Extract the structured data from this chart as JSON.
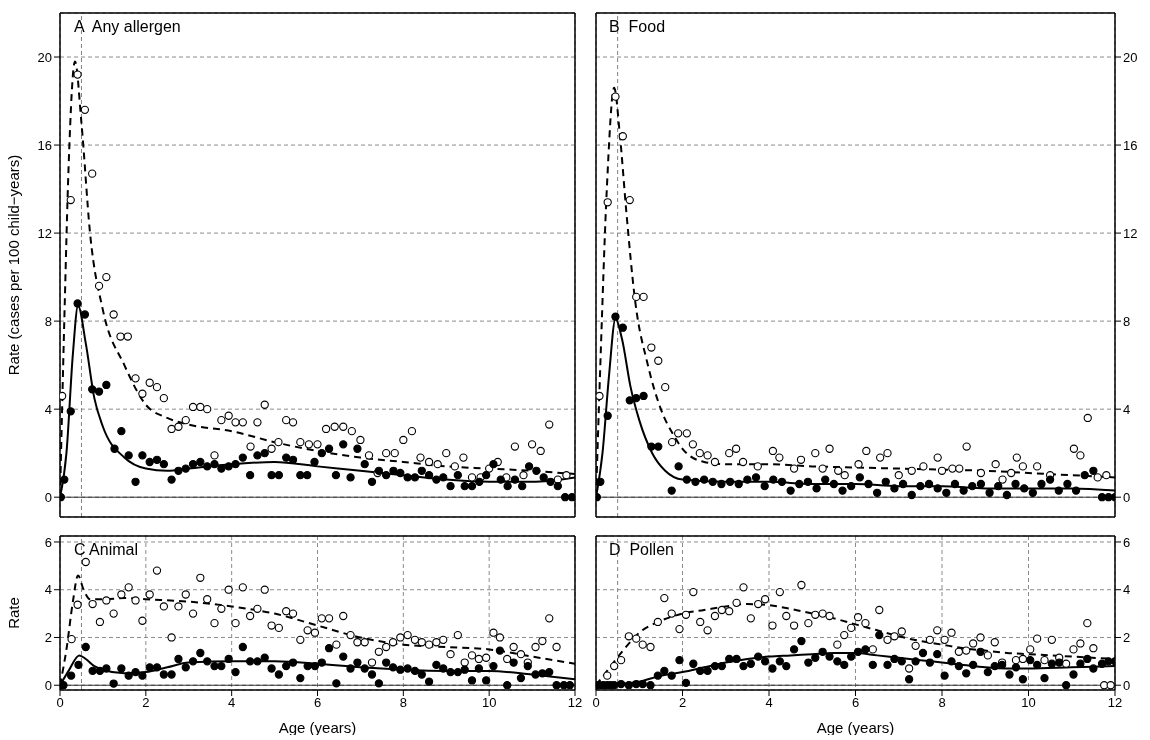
{
  "chart_data": [
    {
      "type": "scatter",
      "title": "A  Any allergen",
      "ylabel": "Rate (cases per 100 child−years)",
      "xlim": [
        0,
        12
      ],
      "xticks": [
        0,
        2,
        4,
        6,
        8,
        10,
        12
      ],
      "ylim": [
        -0.9,
        22
      ],
      "yticks": [
        0,
        4,
        8,
        12,
        16,
        20
      ],
      "tick_labels": "y",
      "grid": true,
      "ref_lines": [
        {
          "axis": "x",
          "value": 0.5,
          "color": "#808080",
          "line_style": "dashed"
        },
        {
          "axis": "y",
          "value": 0,
          "color": "#000000",
          "line_style": "solid"
        }
      ],
      "series": [
        {
          "type": "scatter",
          "marker": "circle",
          "color": "#ffffff",
          "x": [
            0.05,
            0.25,
            0.41,
            0.58,
            0.75,
            0.91,
            1.08,
            1.25,
            1.41,
            1.58,
            1.76,
            1.92,
            2.09,
            2.26,
            2.42,
            2.6,
            2.76,
            2.93,
            3.1,
            3.27,
            3.43,
            3.6,
            3.76,
            3.93,
            4.09,
            4.26,
            4.44,
            4.6,
            4.77,
            4.93,
            5.09,
            5.27,
            5.43,
            5.6,
            5.8,
            6.0,
            6.2,
            6.4,
            6.6,
            6.8,
            7.0,
            7.2,
            7.4,
            7.6,
            7.8,
            8.0,
            8.2,
            8.4,
            8.6,
            8.8,
            9.0,
            9.2,
            9.4,
            9.6,
            9.8,
            10.0,
            10.2,
            10.4,
            10.6,
            10.8,
            11.0,
            11.2,
            11.4,
            11.6,
            11.8
          ],
          "values": [
            4.6,
            13.5,
            19.2,
            17.6,
            14.7,
            9.6,
            10.0,
            8.3,
            7.3,
            7.3,
            5.4,
            4.7,
            5.2,
            5.0,
            4.5,
            3.1,
            3.2,
            3.5,
            4.1,
            4.1,
            4.0,
            1.9,
            3.5,
            3.7,
            3.4,
            3.4,
            2.3,
            3.4,
            4.2,
            2.2,
            2.5,
            3.5,
            3.4,
            2.5,
            2.4,
            2.4,
            3.1,
            3.2,
            3.2,
            3.0,
            2.6,
            1.9,
            1.1,
            2.0,
            2.0,
            2.6,
            3.0,
            1.8,
            1.6,
            1.5,
            2.0,
            1.4,
            1.8,
            0.9,
            0.9,
            1.3,
            1.6,
            0.9,
            2.3,
            1.0,
            2.4,
            2.1,
            3.3,
            0.8,
            1.0
          ]
        },
        {
          "type": "scatter",
          "marker": "circle",
          "color": "#000000",
          "x": [
            0.02,
            0.1,
            0.25,
            0.41,
            0.58,
            0.75,
            0.91,
            1.08,
            1.27,
            1.43,
            1.6,
            1.76,
            1.92,
            2.09,
            2.26,
            2.42,
            2.6,
            2.76,
            2.93,
            3.1,
            3.27,
            3.43,
            3.6,
            3.76,
            3.93,
            4.09,
            4.26,
            4.43,
            4.6,
            4.77,
            4.93,
            5.1,
            5.27,
            5.43,
            5.6,
            5.76,
            5.93,
            6.1,
            6.27,
            6.43,
            6.6,
            6.77,
            6.93,
            7.1,
            7.27,
            7.43,
            7.6,
            7.77,
            7.93,
            8.1,
            8.27,
            8.43,
            8.6,
            8.77,
            8.93,
            9.1,
            9.27,
            9.43,
            9.6,
            9.77,
            9.93,
            10.1,
            10.27,
            10.43,
            10.6,
            10.77,
            10.93,
            11.1,
            11.27,
            11.43,
            11.6,
            11.77,
            11.93
          ],
          "values": [
            0,
            0.8,
            3.9,
            8.8,
            8.3,
            4.9,
            4.8,
            5.1,
            2.2,
            3.0,
            1.9,
            0.7,
            1.9,
            1.6,
            1.7,
            1.5,
            0.8,
            1.2,
            1.3,
            1.5,
            1.6,
            1.4,
            1.5,
            1.3,
            1.4,
            1.5,
            1.8,
            1.0,
            1.9,
            2.0,
            1.0,
            1.0,
            1.8,
            1.7,
            1.0,
            1.0,
            1.6,
            2.0,
            2.2,
            1.0,
            2.4,
            0.9,
            2.2,
            1.5,
            0.7,
            1.2,
            1.0,
            1.2,
            1.1,
            0.9,
            0.9,
            1.2,
            1.0,
            0.8,
            0.9,
            0.5,
            1.0,
            0.5,
            0.5,
            0.7,
            1.0,
            1.5,
            0.8,
            0.5,
            0.8,
            0.5,
            1.4,
            1.2,
            0.9,
            0.7,
            0.5,
            0,
            0
          ]
        },
        {
          "type": "line",
          "marker": "none",
          "line_style": "dashed",
          "color": "#000000",
          "x": [
            0,
            0.1,
            0.2,
            0.35,
            0.5,
            0.7,
            1.0,
            1.5,
            2.0,
            2.5,
            3,
            4,
            5,
            6,
            7,
            8,
            9,
            10,
            11,
            12
          ],
          "values": [
            0,
            8,
            15,
            19.8,
            17,
            12,
            8.5,
            6,
            4.2,
            3.6,
            3.3,
            3.0,
            2.5,
            2.1,
            1.8,
            1.6,
            1.4,
            1.3,
            1.2,
            1.05
          ]
        },
        {
          "type": "line",
          "marker": "none",
          "line_style": "solid",
          "color": "#000000",
          "x": [
            0,
            0.15,
            0.3,
            0.42,
            0.6,
            0.8,
            1.0,
            1.5,
            2.0,
            2.5,
            3,
            4,
            5,
            6,
            7,
            8,
            9,
            10,
            11,
            12
          ],
          "values": [
            0,
            2,
            6.5,
            8.7,
            7,
            4.5,
            3.2,
            1.8,
            1.3,
            1.2,
            1.3,
            1.5,
            1.6,
            1.4,
            1.2,
            1.0,
            0.8,
            0.7,
            0.7,
            0.9
          ]
        }
      ]
    },
    {
      "type": "scatter",
      "title": "B  Food",
      "xlim": [
        0,
        12
      ],
      "xticks": [
        0,
        2,
        4,
        6,
        8,
        10,
        12
      ],
      "y2lim": [
        -0.9,
        22
      ],
      "y2ticks": [
        0,
        4,
        8,
        12,
        16,
        20
      ],
      "tick_labels": "y",
      "grid": true,
      "ref_lines": [
        {
          "axis": "x",
          "value": 0.5,
          "color": "#808080",
          "line_style": "dashed"
        },
        {
          "axis": "y2",
          "value": 0,
          "color": "#000000",
          "line_style": "solid"
        }
      ],
      "series": [
        {
          "type": "scatter",
          "axis": "y2",
          "marker": "circle",
          "color": "#ffffff",
          "x": [
            0.08,
            0.27,
            0.45,
            0.62,
            0.78,
            0.93,
            1.1,
            1.28,
            1.44,
            1.6,
            1.76,
            1.9,
            2.1,
            2.24,
            2.4,
            2.58,
            2.75,
            3.08,
            3.24,
            3.4,
            3.74,
            4.09,
            4.24,
            4.58,
            4.74,
            5.07,
            5.24,
            5.4,
            5.6,
            5.75,
            6.07,
            6.25,
            6.57,
            6.74,
            7.0,
            7.3,
            7.57,
            7.9,
            8.0,
            8.24,
            8.4,
            8.57,
            8.9,
            9.24,
            9.4,
            9.6,
            9.73,
            9.87,
            10.2,
            10.5,
            11.05,
            11.2,
            11.37,
            11.6,
            11.8
          ],
          "values": [
            4.6,
            13.4,
            18.2,
            16.4,
            13.5,
            9.1,
            9.1,
            6.8,
            6.2,
            5.0,
            2.5,
            2.9,
            2.9,
            2.4,
            2.0,
            1.9,
            1.6,
            2.0,
            2.2,
            1.6,
            1.4,
            2.1,
            1.8,
            1.3,
            1.7,
            2.0,
            1.3,
            2.2,
            1.2,
            1.0,
            1.5,
            2.1,
            1.8,
            2.0,
            1.0,
            1.2,
            1.4,
            1.8,
            1.2,
            1.3,
            1.3,
            2.3,
            1.1,
            1.5,
            0.8,
            1.1,
            1.8,
            1.4,
            1.4,
            1.0,
            2.2,
            1.9,
            3.6,
            0.9,
            1.0
          ]
        },
        {
          "type": "scatter",
          "axis": "y2",
          "marker": "circle",
          "color": "#000000",
          "x": [
            0.02,
            0.1,
            0.27,
            0.45,
            0.62,
            0.78,
            0.93,
            1.1,
            1.28,
            1.44,
            1.75,
            1.91,
            2.1,
            2.3,
            2.5,
            2.7,
            2.9,
            3.1,
            3.3,
            3.5,
            3.7,
            3.9,
            4.1,
            4.3,
            4.5,
            4.7,
            4.9,
            5.1,
            5.3,
            5.5,
            5.7,
            5.9,
            6.1,
            6.3,
            6.5,
            6.7,
            6.9,
            7.1,
            7.3,
            7.5,
            7.7,
            7.9,
            8.1,
            8.3,
            8.5,
            8.7,
            8.9,
            9.1,
            9.3,
            9.5,
            9.7,
            9.9,
            10.1,
            10.3,
            10.5,
            10.7,
            10.9,
            11.1,
            11.3,
            11.5,
            11.7,
            11.85,
            12
          ],
          "values": [
            0,
            0.7,
            3.7,
            8.2,
            7.7,
            4.4,
            4.5,
            4.6,
            2.3,
            2.3,
            0.3,
            1.4,
            0.8,
            0.7,
            0.8,
            0.7,
            0.6,
            0.7,
            0.6,
            0.8,
            0.9,
            0.5,
            0.8,
            0.7,
            0.3,
            0.6,
            0.7,
            0.4,
            0.8,
            0.6,
            0.3,
            0.5,
            0.9,
            0.6,
            0.2,
            0.7,
            0.4,
            0.6,
            0.1,
            0.5,
            0.6,
            0.4,
            0.2,
            0.6,
            0.3,
            0.5,
            0.6,
            0.2,
            0.5,
            0.1,
            0.6,
            0.4,
            0.2,
            0.6,
            0.8,
            0.3,
            0.6,
            0.3,
            1.0,
            1.2,
            0,
            0,
            0
          ]
        },
        {
          "type": "line",
          "axis": "y2",
          "marker": "none",
          "line_style": "dashed",
          "color": "#000000",
          "x": [
            0,
            0.1,
            0.25,
            0.42,
            0.55,
            0.7,
            0.9,
            1.2,
            1.5,
            1.8,
            2.0,
            2.5,
            3,
            4,
            5,
            6,
            7,
            8,
            9,
            10,
            11,
            12
          ],
          "values": [
            0,
            6,
            14,
            18.6,
            16.5,
            13,
            9,
            6,
            4,
            2.8,
            2.2,
            1.6,
            1.5,
            1.5,
            1.4,
            1.35,
            1.3,
            1.25,
            1.2,
            1.1,
            1.0,
            0.9
          ]
        },
        {
          "type": "line",
          "axis": "y2",
          "marker": "none",
          "line_style": "solid",
          "color": "#000000",
          "x": [
            0,
            0.15,
            0.3,
            0.45,
            0.6,
            0.8,
            1.0,
            1.3,
            1.6,
            2.0,
            3,
            4,
            5,
            6,
            7,
            8,
            9,
            10,
            11,
            12
          ],
          "values": [
            0,
            2,
            5.5,
            8.1,
            7.2,
            5,
            3.5,
            2.0,
            1.2,
            0.8,
            0.7,
            0.7,
            0.6,
            0.6,
            0.5,
            0.5,
            0.4,
            0.4,
            0.4,
            0.3
          ]
        }
      ]
    },
    {
      "type": "scatter",
      "title": "C Animal",
      "ylabel": "Rate",
      "xlabel": "Age (years)",
      "xlim": [
        0,
        12
      ],
      "xticks": [
        0,
        2,
        4,
        6,
        8,
        10,
        12
      ],
      "ylim": [
        -0.2,
        6.25
      ],
      "yticks": [
        0,
        2,
        4,
        6
      ],
      "grid": true,
      "ref_lines": [
        {
          "axis": "x",
          "value": 0.5,
          "color": "#808080",
          "line_style": "dashed"
        },
        {
          "axis": "y",
          "value": 0,
          "color": "#000000",
          "line_style": "solid"
        }
      ],
      "series": [
        {
          "type": "scatter",
          "marker": "circle",
          "color": "#ffffff",
          "x": [
            0.27,
            0.41,
            0.6,
            0.76,
            0.93,
            1.08,
            1.25,
            1.43,
            1.6,
            1.76,
            1.92,
            2.09,
            2.26,
            2.42,
            2.6,
            2.76,
            2.93,
            3.1,
            3.27,
            3.43,
            3.6,
            3.76,
            3.93,
            4.09,
            4.26,
            4.43,
            4.6,
            4.77,
            4.93,
            5.1,
            5.27,
            5.43,
            5.6,
            5.77,
            5.94,
            6.1,
            6.27,
            6.44,
            6.6,
            6.77,
            6.93,
            7.1,
            7.27,
            7.43,
            7.6,
            7.76,
            7.93,
            8.1,
            8.27,
            8.43,
            8.6,
            8.77,
            8.93,
            9.1,
            9.27,
            9.43,
            9.6,
            9.76,
            9.93,
            10.1,
            10.25,
            10.42,
            10.57,
            10.74,
            10.9,
            11.08,
            11.24,
            11.4,
            11.57
          ],
          "values": [
            1.93,
            3.37,
            5.16,
            3.4,
            2.65,
            3.55,
            3.0,
            3.8,
            4.1,
            3.55,
            2.7,
            3.8,
            4.8,
            3.3,
            2.0,
            3.3,
            3.8,
            3.0,
            4.5,
            3.6,
            2.6,
            3.2,
            4.0,
            2.6,
            4.1,
            2.9,
            3.2,
            4.0,
            2.5,
            2.4,
            3.1,
            3.0,
            1.9,
            2.3,
            2.2,
            2.8,
            2.8,
            1.7,
            2.9,
            2.1,
            1.8,
            1.8,
            0.95,
            1.4,
            1.6,
            1.8,
            2.0,
            2.1,
            1.9,
            1.8,
            1.7,
            1.8,
            1.9,
            1.3,
            2.1,
            0.95,
            1.25,
            1.1,
            1.15,
            2.2,
            2.0,
            1.1,
            1.6,
            1.3,
            0.95,
            1.6,
            1.85,
            2.8,
            1.6
          ]
        },
        {
          "type": "scatter",
          "marker": "circle",
          "color": "#000000",
          "x": [
            0.02,
            0.08,
            0.26,
            0.43,
            0.6,
            0.76,
            0.93,
            1.08,
            1.25,
            1.43,
            1.6,
            1.76,
            1.92,
            2.09,
            2.26,
            2.42,
            2.6,
            2.76,
            2.93,
            3.1,
            3.27,
            3.43,
            3.6,
            3.76,
            3.93,
            4.09,
            4.26,
            4.43,
            4.6,
            4.77,
            4.93,
            5.1,
            5.27,
            5.43,
            5.6,
            5.77,
            5.94,
            6.1,
            6.27,
            6.44,
            6.6,
            6.77,
            6.93,
            7.1,
            7.27,
            7.43,
            7.6,
            7.76,
            7.93,
            8.1,
            8.27,
            8.43,
            8.6,
            8.77,
            8.93,
            9.1,
            9.27,
            9.43,
            9.6,
            9.76,
            9.93,
            10.1,
            10.25,
            10.42,
            10.57,
            10.74,
            10.9,
            11.08,
            11.24,
            11.4,
            11.57,
            11.74,
            11.88
          ],
          "values": [
            0,
            0,
            0.4,
            0.85,
            1.6,
            0.6,
            0.6,
            0.7,
            0.07,
            0.7,
            0.4,
            0.55,
            0.4,
            0.75,
            0.75,
            0.45,
            0.45,
            1.1,
            0.75,
            1.0,
            1.35,
            1.0,
            0.8,
            0.8,
            1.1,
            0.55,
            1.6,
            1.0,
            1.0,
            1.15,
            0.7,
            0.45,
            0.8,
            0.95,
            0.3,
            0.8,
            0.8,
            0.95,
            1.55,
            0.08,
            1.2,
            0.7,
            0.95,
            0.7,
            0.45,
            0.08,
            0.95,
            0.75,
            0.65,
            0.7,
            0.6,
            0.45,
            0.15,
            0.85,
            0.7,
            0.55,
            0.55,
            0.65,
            0.2,
            0.7,
            0.2,
            0.8,
            1.45,
            0,
            0.95,
            0.3,
            0.8,
            0.45,
            0.5,
            0.55,
            0,
            0,
            0
          ]
        },
        {
          "type": "line",
          "marker": "none",
          "line_style": "dashed",
          "color": "#000000",
          "x": [
            0,
            0.15,
            0.3,
            0.42,
            0.55,
            0.7,
            1,
            1.5,
            2,
            3,
            4,
            5,
            6,
            7,
            8,
            9,
            10,
            11,
            12
          ],
          "values": [
            0,
            1.5,
            3.5,
            4.6,
            4.0,
            3.6,
            3.6,
            3.65,
            3.6,
            3.5,
            3.3,
            3.0,
            2.5,
            2.0,
            1.7,
            1.6,
            1.5,
            1.2,
            0.9
          ]
        },
        {
          "type": "line",
          "marker": "none",
          "line_style": "solid",
          "color": "#000000",
          "x": [
            0,
            0.2,
            0.45,
            0.6,
            0.8,
            1.0,
            1.5,
            2,
            2.5,
            3,
            4,
            5,
            6,
            7,
            8,
            9,
            10,
            11,
            12
          ],
          "values": [
            0,
            0.6,
            1.25,
            1.1,
            0.8,
            0.65,
            0.5,
            0.55,
            0.75,
            0.95,
            1.0,
            1.0,
            0.9,
            0.75,
            0.65,
            0.6,
            0.6,
            0.45,
            0.25
          ]
        }
      ]
    },
    {
      "type": "scatter",
      "title": "D  Pollen",
      "xlabel": "Age (years)",
      "xlim": [
        0,
        12
      ],
      "xticks": [
        0,
        2,
        4,
        6,
        8,
        10,
        12
      ],
      "y2lim": [
        -0.2,
        6.25
      ],
      "y2ticks": [
        0,
        2,
        4,
        6
      ],
      "grid": true,
      "ref_lines": [
        {
          "axis": "x",
          "value": 0.5,
          "color": "#808080",
          "line_style": "dashed"
        },
        {
          "axis": "y2",
          "value": 0,
          "color": "#000000",
          "line_style": "solid"
        }
      ],
      "series": [
        {
          "type": "scatter",
          "axis": "y2",
          "marker": "circle",
          "color": "#ffffff",
          "x": [
            0.26,
            0.42,
            0.58,
            0.76,
            0.93,
            1.08,
            1.26,
            1.43,
            1.58,
            1.75,
            1.93,
            2.08,
            2.25,
            2.41,
            2.58,
            2.75,
            2.91,
            3.08,
            3.25,
            3.41,
            3.58,
            3.75,
            3.91,
            4.08,
            4.25,
            4.4,
            4.58,
            4.75,
            4.91,
            5.07,
            5.24,
            5.4,
            5.58,
            5.74,
            5.9,
            6.06,
            6.23,
            6.4,
            6.55,
            6.74,
            6.9,
            7.07,
            7.24,
            7.39,
            7.72,
            7.89,
            8.06,
            8.22,
            8.39,
            8.56,
            8.72,
            8.89,
            9.06,
            9.22,
            9.39,
            9.71,
            9.87,
            10.04,
            10.2,
            10.37,
            10.54,
            10.71,
            10.87,
            11.04,
            11.2,
            11.36,
            11.5,
            11.75,
            11.9
          ],
          "values": [
            0.4,
            0.8,
            1.05,
            2.05,
            1.95,
            1.7,
            1.6,
            2.65,
            3.65,
            3.0,
            2.35,
            2.95,
            3.9,
            2.65,
            2.3,
            2.9,
            3.15,
            3.1,
            3.45,
            4.1,
            2.8,
            3.4,
            3.6,
            2.5,
            3.9,
            2.9,
            2.5,
            4.2,
            2.6,
            2.95,
            3.0,
            2.9,
            1.7,
            2.1,
            2.4,
            2.85,
            2.6,
            1.5,
            3.15,
            1.9,
            2.05,
            2.25,
            0.7,
            1.65,
            1.9,
            2.3,
            1.9,
            2.2,
            1.4,
            1.45,
            1.75,
            2.0,
            1.25,
            1.8,
            0.95,
            1.05,
            1.1,
            1.5,
            1.95,
            1.05,
            1.9,
            1.15,
            0.9,
            1.5,
            1.75,
            2.6,
            1.55,
            0,
            0
          ]
        },
        {
          "type": "scatter",
          "axis": "y2",
          "marker": "circle",
          "color": "#000000",
          "x": [
            0.0,
            0.08,
            0.17,
            0.26,
            0.34,
            0.42,
            0.58,
            0.76,
            0.93,
            1.08,
            1.26,
            1.43,
            1.58,
            1.75,
            1.93,
            2.08,
            2.25,
            2.41,
            2.58,
            2.75,
            2.91,
            3.08,
            3.25,
            3.41,
            3.58,
            3.75,
            3.91,
            4.08,
            4.25,
            4.4,
            4.58,
            4.75,
            4.91,
            5.07,
            5.24,
            5.4,
            5.58,
            5.74,
            5.9,
            6.06,
            6.23,
            6.4,
            6.55,
            6.74,
            6.9,
            7.07,
            7.24,
            7.39,
            7.56,
            7.72,
            7.89,
            8.06,
            8.22,
            8.39,
            8.56,
            8.72,
            8.89,
            9.06,
            9.22,
            9.39,
            9.56,
            9.71,
            9.87,
            10.04,
            10.2,
            10.37,
            10.54,
            10.71,
            10.87,
            11.04,
            11.2,
            11.36,
            11.5,
            11.7,
            11.85,
            12.0
          ],
          "values": [
            0,
            0,
            0,
            0,
            0,
            0,
            0.05,
            0,
            0.05,
            0.05,
            0,
            0.4,
            0.6,
            0.4,
            1.05,
            0.1,
            0.9,
            0.6,
            0.6,
            0.8,
            0.8,
            1.1,
            1.1,
            0.8,
            0.9,
            1.2,
            1.0,
            0.7,
            1.0,
            0.8,
            1.5,
            1.85,
            0.95,
            1.15,
            1.4,
            1.2,
            1.0,
            0.85,
            1.2,
            1.4,
            1.5,
            0.85,
            2.1,
            0.85,
            1.1,
            1.0,
            0.25,
            1.0,
            1.35,
            0.95,
            1.3,
            0.4,
            1.0,
            0.8,
            0.5,
            0.85,
            1.4,
            0.55,
            0.8,
            0.85,
            0.45,
            0.75,
            0.25,
            1.05,
            0.85,
            0.3,
            0.9,
            0.95,
            0,
            0.45,
            0.9,
            1.1,
            0.7,
            0.9,
            1.0,
            1.0
          ]
        },
        {
          "type": "line",
          "axis": "y2",
          "marker": "none",
          "line_style": "dashed",
          "color": "#000000",
          "x": [
            0,
            0.3,
            0.6,
            1.0,
            1.5,
            2,
            2.5,
            3,
            3.5,
            4,
            4.5,
            5,
            5.5,
            6,
            6.5,
            7,
            7.5,
            8,
            8.5,
            9,
            9.5,
            10,
            10.5,
            11,
            12
          ],
          "values": [
            0,
            0.7,
            1.4,
            2.2,
            2.7,
            3.0,
            3.15,
            3.3,
            3.4,
            3.35,
            3.2,
            3.0,
            2.8,
            2.55,
            2.3,
            2.05,
            1.85,
            1.7,
            1.55,
            1.45,
            1.35,
            1.3,
            1.25,
            1.2,
            1.1
          ]
        },
        {
          "type": "line",
          "axis": "y2",
          "marker": "none",
          "line_style": "solid",
          "color": "#000000",
          "x": [
            0,
            0.5,
            1.0,
            1.5,
            2,
            2.5,
            3,
            3.5,
            4,
            4.5,
            5,
            5.5,
            6,
            6.5,
            7,
            7.5,
            8,
            8.5,
            9,
            9.5,
            10,
            11,
            12
          ],
          "values": [
            0,
            0.05,
            0.15,
            0.4,
            0.55,
            0.75,
            0.95,
            1.1,
            1.2,
            1.25,
            1.3,
            1.35,
            1.35,
            1.25,
            1.15,
            1.05,
            0.95,
            0.85,
            0.75,
            0.7,
            0.7,
            0.75,
            0.8
          ]
        }
      ]
    }
  ]
}
